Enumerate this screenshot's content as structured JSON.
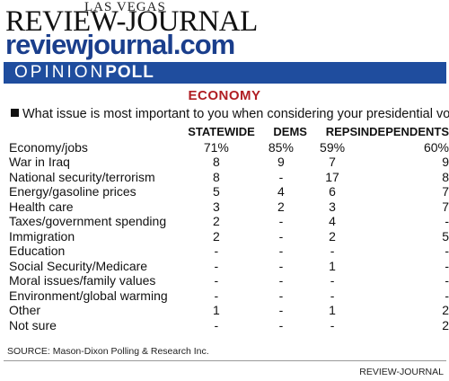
{
  "masthead": {
    "city": "LAS VEGAS",
    "paper": "REVIEW-JOURNAL",
    "site": "reviewjournal.com"
  },
  "banner": {
    "prefix": "OPINION",
    "suffix": "POLL"
  },
  "colors": {
    "banner": "#1f4d9e",
    "topic": "#b01e23",
    "site": "#1a3e8c"
  },
  "chart_data": {
    "type": "table",
    "title": "ECONOMY",
    "question": "What issue is most important to you when considering your presidential vote?",
    "columns": [
      "",
      "STATEWIDE",
      "DEMS",
      "REPS",
      "INDEPENDENTS"
    ],
    "rows": [
      {
        "label": "Economy/jobs",
        "values": [
          "71%",
          "85%",
          "59%",
          "60%"
        ]
      },
      {
        "label": "War in Iraq",
        "values": [
          "8",
          "9",
          "7",
          "9"
        ]
      },
      {
        "label": "National security/terrorism",
        "values": [
          "8",
          "-",
          "17",
          "8"
        ]
      },
      {
        "label": "Energy/gasoline prices",
        "values": [
          "5",
          "4",
          "6",
          "7"
        ]
      },
      {
        "label": "Health care",
        "values": [
          "3",
          "2",
          "3",
          "7"
        ]
      },
      {
        "label": "Taxes/government spending",
        "values": [
          "2",
          "-",
          "4",
          "-"
        ]
      },
      {
        "label": "Immigration",
        "values": [
          "2",
          "-",
          "2",
          "5"
        ]
      },
      {
        "label": "Education",
        "values": [
          "-",
          "-",
          "-",
          "-"
        ]
      },
      {
        "label": "Social Security/Medicare",
        "values": [
          "-",
          "-",
          "1",
          "-"
        ]
      },
      {
        "label": "Moral issues/family values",
        "values": [
          "-",
          "-",
          "-",
          "-"
        ]
      },
      {
        "label": "Environment/global warming",
        "values": [
          "-",
          "-",
          "-",
          "-"
        ]
      },
      {
        "label": "Other",
        "values": [
          "1",
          "-",
          "1",
          "2"
        ]
      },
      {
        "label": "Not sure",
        "values": [
          "-",
          "-",
          "-",
          "2"
        ]
      }
    ],
    "source": "SOURCE: Mason-Dixon Polling & Research Inc.",
    "credit": "REVIEW-JOURNAL"
  }
}
